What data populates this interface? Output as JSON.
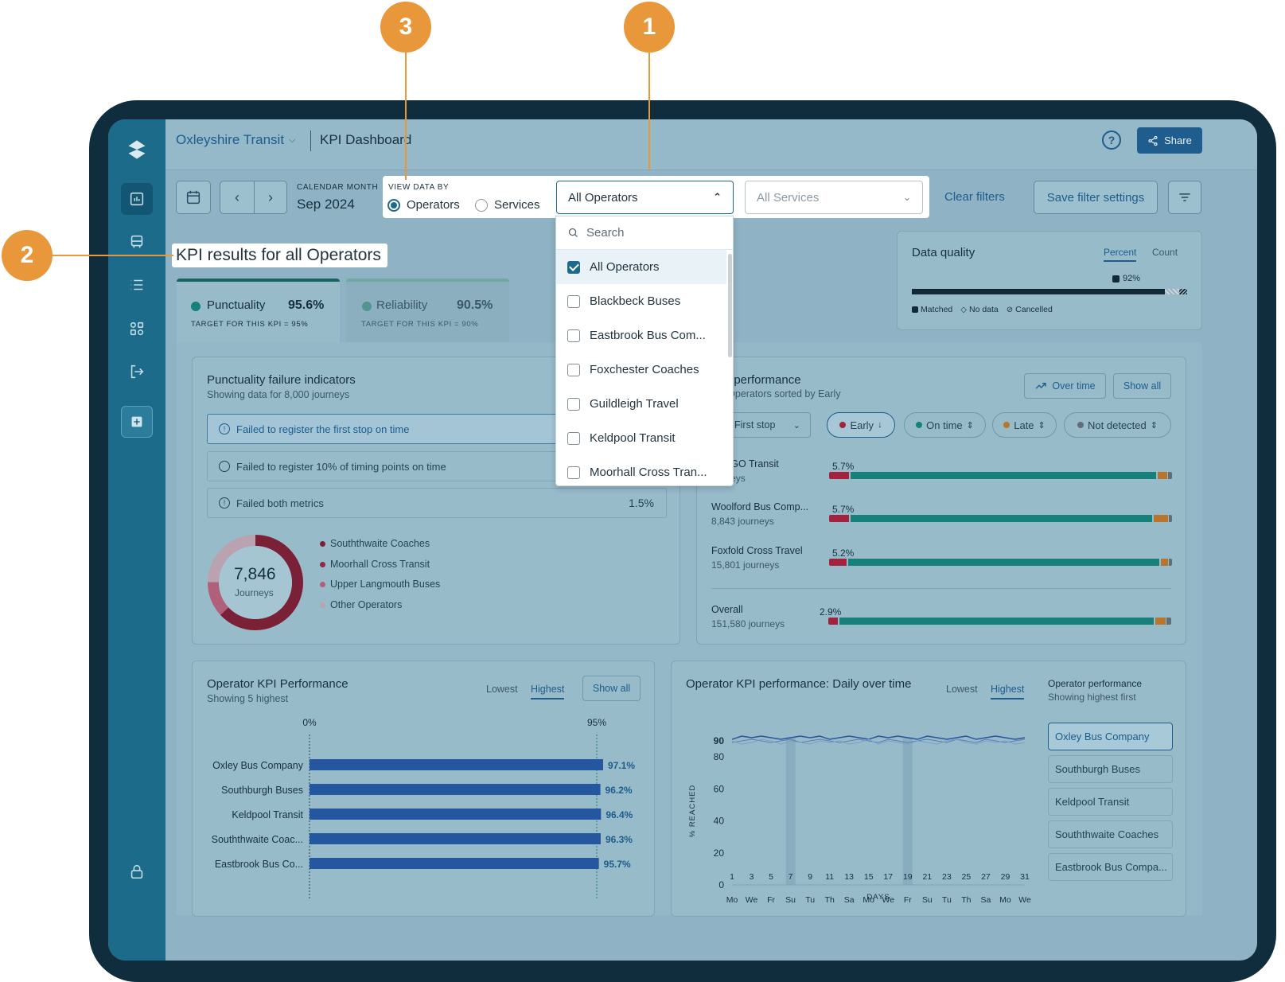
{
  "annotations": [
    "3",
    "1",
    "2"
  ],
  "header": {
    "org": "Oxleyshire Transit",
    "page": "KPI Dashboard",
    "share": "Share"
  },
  "filters": {
    "calendar_label": "CALENDAR MONTH",
    "month": "Sep 2024",
    "view_label": "VIEW DATA BY",
    "view_options": [
      "Operators",
      "Services"
    ],
    "view_selected": "Operators",
    "operators_value": "All Operators",
    "services_placeholder": "All Services",
    "clear": "Clear filters",
    "save": "Save filter settings"
  },
  "dropdown": {
    "search_placeholder": "Search",
    "items": [
      {
        "label": "All Operators",
        "checked": true
      },
      {
        "label": "Blackbeck Buses",
        "checked": false
      },
      {
        "label": "Eastbrook Bus Com...",
        "checked": false
      },
      {
        "label": "Foxchester Coaches",
        "checked": false
      },
      {
        "label": "Guildleigh Travel",
        "checked": false
      },
      {
        "label": "Keldpool Transit",
        "checked": false
      },
      {
        "label": "Moorhall Cross Tran...",
        "checked": false
      }
    ]
  },
  "heading": "KPI results for all Operators",
  "kpi_tabs": [
    {
      "name": "Punctuality",
      "value": "95.6%",
      "target": "TARGET FOR THIS KPI = 95%"
    },
    {
      "name": "Reliability",
      "value": "90.5%",
      "target": "TARGET FOR THIS KPI = 90%"
    }
  ],
  "data_quality": {
    "title": "Data quality",
    "tabs": [
      "Percent",
      "Count"
    ],
    "value": "92%",
    "matched_fraction": 0.92,
    "legend": [
      "Matched",
      "No data",
      "Cancelled"
    ]
  },
  "failure": {
    "title": "Punctuality failure indicators",
    "subtitle": "Showing data for 8,000 journeys",
    "rows": [
      {
        "label": "Failed to register the first stop on time",
        "value": ""
      },
      {
        "label": "Failed to register 10% of timing points on time",
        "value": ""
      },
      {
        "label": "Failed both metrics",
        "value": "1.5%"
      }
    ],
    "donut_value": "7,846",
    "donut_label": "Journeys",
    "legend": [
      "Souththwaite Coaches",
      "Moorhall Cross Transit",
      "Upper Langmouth Buses",
      "Other Operators"
    ],
    "legend_colors": [
      "#7a2037",
      "#8e2a44",
      "#b0607a",
      "#b9a3b0"
    ]
  },
  "ontime": {
    "title_fragment": "ime performance",
    "subtitle_fragment": "ing Operators sorted by Early",
    "over_time": "Over time",
    "show_all": "Show all",
    "stop_filter": "First stop",
    "pills": [
      "Early",
      "On time",
      "Late",
      "Not detected"
    ],
    "pill_colors": [
      "#a3233f",
      "#17807a",
      "#b8762c",
      "#5f6f78"
    ],
    "rows": [
      {
        "name": "urst GO Transit",
        "sub": "ourneys",
        "pct": "5.7%",
        "early": 0.057,
        "late": 0.028,
        "nd": 0.012
      },
      {
        "name": "Woolford Bus Comp...",
        "sub": "8,843 journeys",
        "pct": "5.7%",
        "early": 0.057,
        "late": 0.042,
        "nd": 0.01
      },
      {
        "name": "Foxfold Cross Travel",
        "sub": "15,801 journeys",
        "pct": "5.2%",
        "early": 0.052,
        "late": 0.02,
        "nd": 0.01
      },
      {
        "name": "Overall",
        "sub": "151,580 journeys",
        "pct": "2.9%",
        "early": 0.029,
        "late": 0.03,
        "nd": 0.014
      }
    ]
  },
  "operator_kpi": {
    "title": "Operator KPI Performance",
    "subtitle": "Showing 5 highest",
    "toggle": [
      "Lowest",
      "Highest"
    ],
    "show_all": "Show all",
    "axis_start": "0%",
    "axis_target": "95%"
  },
  "daily": {
    "title": "Operator KPI performance: Daily over time",
    "toggle": [
      "Lowest",
      "Highest"
    ],
    "side_title": "Operator performance",
    "side_sub": "Showing highest first",
    "operators": [
      "Oxley Bus Company",
      "Southburgh Buses",
      "Keldpool Transit",
      "Souththwaite Coaches",
      "Eastbrook Bus Compa..."
    ],
    "day_names": [
      "Mo",
      "We",
      "Fr",
      "Su",
      "Tu",
      "Th",
      "Sa",
      "Mo",
      "We",
      "Fr",
      "Su",
      "Tu",
      "Th",
      "Sa",
      "Mo",
      "We"
    ],
    "day_nums": [
      "1",
      "3",
      "5",
      "7",
      "9",
      "11",
      "13",
      "15",
      "17",
      "19",
      "21",
      "23",
      "25",
      "27",
      "29",
      "31"
    ]
  },
  "chart_data": [
    {
      "type": "bar",
      "title": "Operator KPI Performance",
      "categories": [
        "Oxley Bus Company",
        "Southburgh Buses",
        "Keldpool Transit",
        "Souththwaite Coac...",
        "Eastbrook Bus Co..."
      ],
      "values": [
        97.1,
        96.2,
        96.4,
        96.3,
        95.7
      ],
      "value_labels": [
        "97.1%",
        "96.2%",
        "96.4%",
        "96.3%",
        "95.7%"
      ],
      "xlim": [
        0,
        100
      ],
      "target": 95,
      "color": "#2556a0"
    },
    {
      "type": "line",
      "title": "Operator KPI performance: Daily over time",
      "xlabel": "DAYS",
      "ylabel": "% REACHED",
      "yticks": [
        0,
        20,
        40,
        60,
        80,
        90
      ],
      "ylim": [
        0,
        95
      ],
      "x": [
        1,
        2,
        3,
        4,
        5,
        6,
        7,
        8,
        9,
        10,
        11,
        12,
        13,
        14,
        15,
        16,
        17,
        18,
        19,
        20,
        21,
        22,
        23,
        24,
        25,
        26,
        27,
        28,
        29,
        30,
        31
      ],
      "series": [
        {
          "values": [
            91,
            93,
            92,
            93,
            92,
            91,
            92,
            93,
            92,
            93,
            91,
            92,
            93,
            92,
            91,
            93,
            92,
            93,
            92,
            91,
            93,
            92,
            91,
            92,
            93,
            91,
            92,
            93,
            92,
            91,
            92
          ]
        },
        {
          "values": [
            89,
            90,
            91,
            90,
            89,
            90,
            91,
            89,
            90,
            91,
            90,
            89,
            90,
            91,
            90,
            89,
            91,
            90,
            89,
            90,
            91,
            90,
            89,
            91,
            90,
            89,
            91,
            90,
            89,
            90,
            91
          ]
        },
        {
          "values": [
            90,
            88,
            89,
            91,
            90,
            88,
            90,
            89,
            88,
            90,
            89,
            90,
            88,
            89,
            91,
            88,
            90,
            89,
            88,
            90,
            89,
            88,
            90,
            91,
            89,
            88,
            90,
            89,
            90,
            88,
            89
          ]
        }
      ]
    }
  ]
}
